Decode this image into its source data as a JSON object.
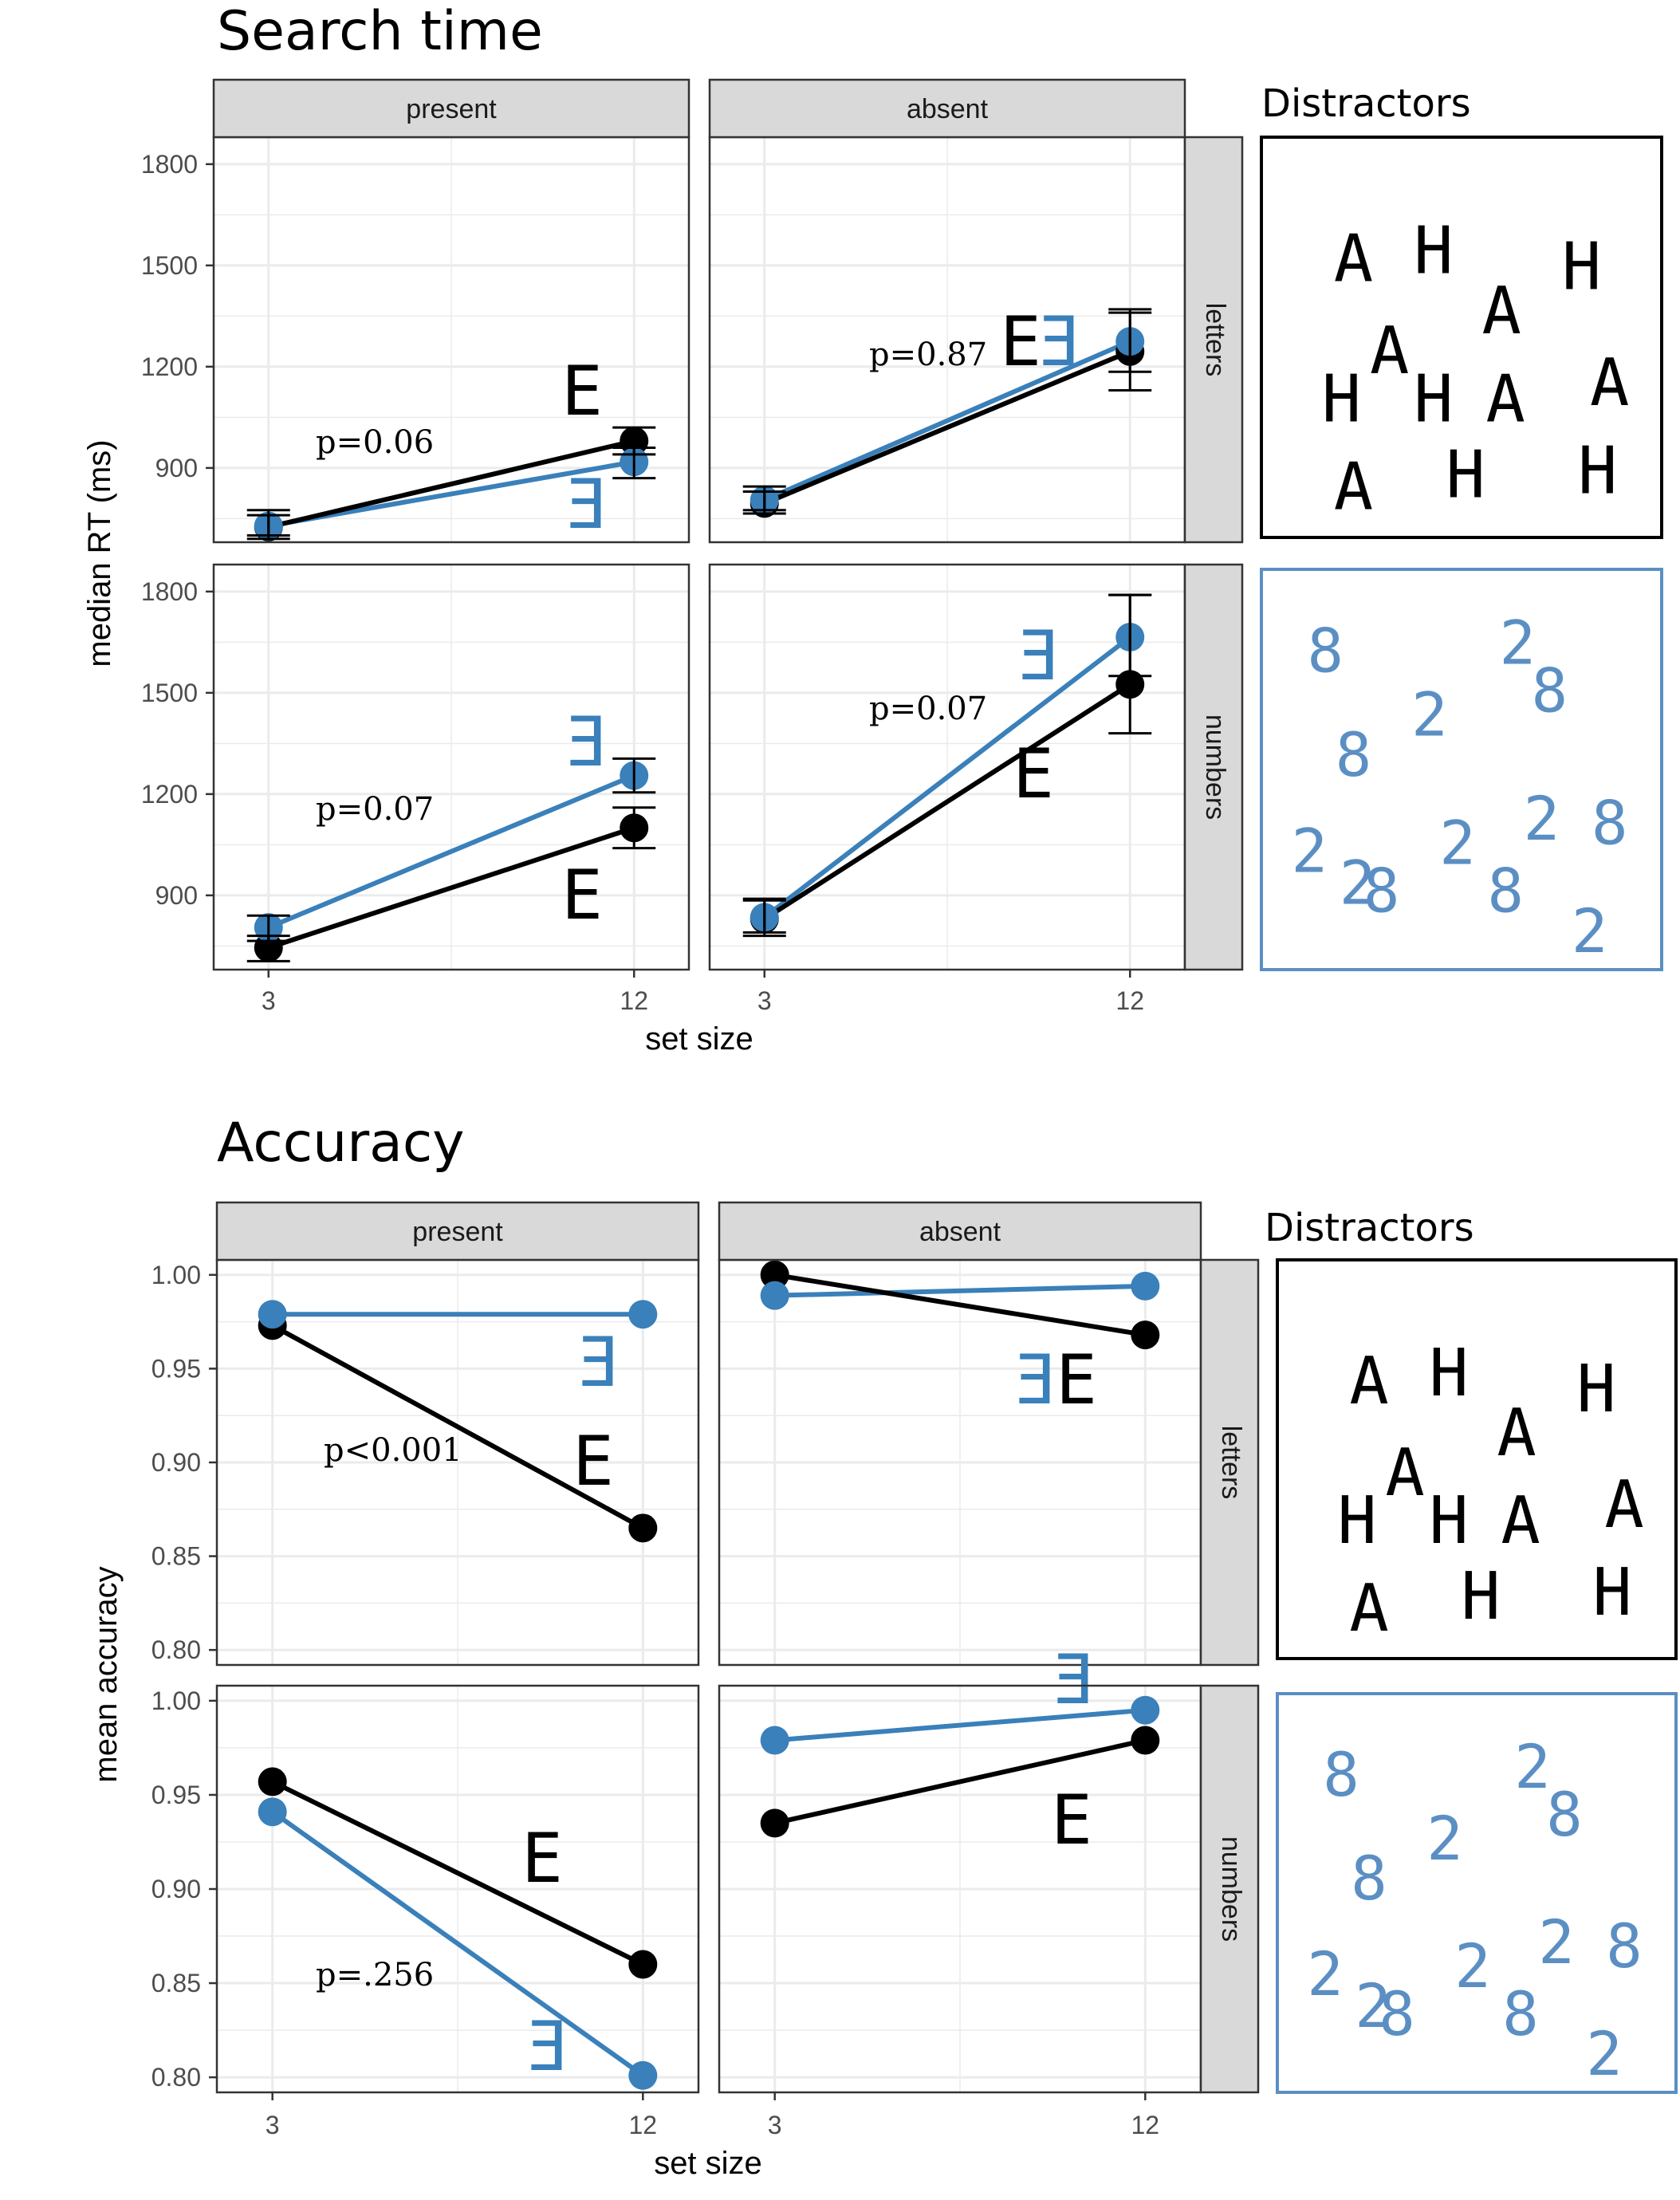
{
  "colors": {
    "letters_series": "#000000",
    "numbers_series": "#3a80ba",
    "strip_fill": "#d9d9d9",
    "grid": "#ebebeb",
    "distractor_letters": "#000000",
    "distractor_numbers": "#5b8fc4"
  },
  "chart_data": [
    {
      "type": "line",
      "title": "Search time",
      "xlabel": "set size",
      "ylabel": "median RT (ms)",
      "x": [
        3,
        12
      ],
      "x_ticks": [
        "3",
        "12"
      ],
      "y_ticks": [
        "900",
        "1200",
        "1500",
        "1800"
      ],
      "ylim": [
        680,
        1880
      ],
      "col_facets": [
        "present",
        "absent"
      ],
      "row_facets": [
        "letters",
        "numbers"
      ],
      "grid": true,
      "error_bars": true,
      "panels": [
        {
          "col": "present",
          "row": "letters",
          "annotation": "p=0.06",
          "series": [
            {
              "glyph": "E",
              "color": "#000000",
              "values": [
                725,
                980
              ],
              "err": [
                [
                  690,
                  760
                ],
                [
                  940,
                  1020
                ]
              ]
            },
            {
              "glyph": "Ǝ",
              "color": "#3a80ba",
              "values": [
                728,
                918
              ],
              "err": [
                [
                  700,
                  775
                ],
                [
                  870,
                  960
                ]
              ]
            }
          ]
        },
        {
          "col": "absent",
          "row": "letters",
          "annotation": "p=0.87",
          "series": [
            {
              "glyph": "E",
              "color": "#000000",
              "values": [
                795,
                1245
              ],
              "err": [
                [
                  765,
                  830
                ],
                [
                  1130,
                  1360
                ]
              ]
            },
            {
              "glyph": "Ǝ",
              "color": "#3a80ba",
              "values": [
                805,
                1275
              ],
              "err": [
                [
                  775,
                  845
                ],
                [
                  1185,
                  1370
                ]
              ]
            }
          ]
        },
        {
          "col": "present",
          "row": "numbers",
          "annotation": "p=0.07",
          "series": [
            {
              "glyph": "E",
              "color": "#000000",
              "values": [
                745,
                1100
              ],
              "err": [
                [
                  705,
                  780
                ],
                [
                  1040,
                  1160
                ]
              ]
            },
            {
              "glyph": "Ǝ",
              "color": "#3a80ba",
              "values": [
                805,
                1255
              ],
              "err": [
                [
                  765,
                  840
                ],
                [
                  1205,
                  1305
                ]
              ]
            }
          ]
        },
        {
          "col": "absent",
          "row": "numbers",
          "annotation": "p=0.07",
          "series": [
            {
              "glyph": "E",
              "color": "#000000",
              "values": [
                830,
                1525
              ],
              "err": [
                [
                  780,
                  890
                ],
                [
                  1380,
                  1790
                ]
              ]
            },
            {
              "glyph": "Ǝ",
              "color": "#3a80ba",
              "values": [
                835,
                1665
              ],
              "err": [
                [
                  790,
                  885
                ],
                [
                  1550,
                  1790
                ]
              ]
            }
          ]
        }
      ]
    },
    {
      "type": "line",
      "title": "Accuracy",
      "xlabel": "set size",
      "ylabel": "mean accuracy",
      "x": [
        3,
        12
      ],
      "x_ticks": [
        "3",
        "12"
      ],
      "y_ticks": [
        "0.80",
        "0.85",
        "0.90",
        "0.95",
        "1.00"
      ],
      "ylim": [
        0.792,
        1.008
      ],
      "col_facets": [
        "present",
        "absent"
      ],
      "row_facets": [
        "letters",
        "numbers"
      ],
      "grid": true,
      "error_bars": false,
      "panels": [
        {
          "col": "present",
          "row": "letters",
          "annotation": "p<0.001",
          "series": [
            {
              "glyph": "E",
              "color": "#000000",
              "values": [
                0.973,
                0.865
              ]
            },
            {
              "glyph": "Ǝ",
              "color": "#3a80ba",
              "values": [
                0.979,
                0.979
              ]
            }
          ]
        },
        {
          "col": "absent",
          "row": "letters",
          "annotation": "",
          "series": [
            {
              "glyph": "E",
              "color": "#000000",
              "values": [
                1.0,
                0.968
              ]
            },
            {
              "glyph": "Ǝ",
              "color": "#3a80ba",
              "values": [
                0.989,
                0.994
              ]
            }
          ]
        },
        {
          "col": "present",
          "row": "numbers",
          "annotation": "p=.256",
          "series": [
            {
              "glyph": "E",
              "color": "#000000",
              "values": [
                0.957,
                0.86
              ]
            },
            {
              "glyph": "Ǝ",
              "color": "#3a80ba",
              "values": [
                0.941,
                0.801
              ]
            }
          ]
        },
        {
          "col": "absent",
          "row": "numbers",
          "annotation": "",
          "series": [
            {
              "glyph": "E",
              "color": "#000000",
              "values": [
                0.935,
                0.979
              ]
            },
            {
              "glyph": "Ǝ",
              "color": "#3a80ba",
              "values": [
                0.979,
                0.995
              ]
            }
          ]
        }
      ]
    }
  ],
  "distractors": {
    "title": "Distractors",
    "letters_glyphs": [
      "A",
      "H",
      "H",
      "A",
      "A",
      "A",
      "H",
      "H",
      "A",
      "A",
      "H",
      "H"
    ],
    "numbers_glyphs": [
      "8",
      "2",
      "8",
      "2",
      "8",
      "2",
      "2",
      "2",
      "8",
      "2",
      "8",
      "8",
      "2"
    ]
  }
}
